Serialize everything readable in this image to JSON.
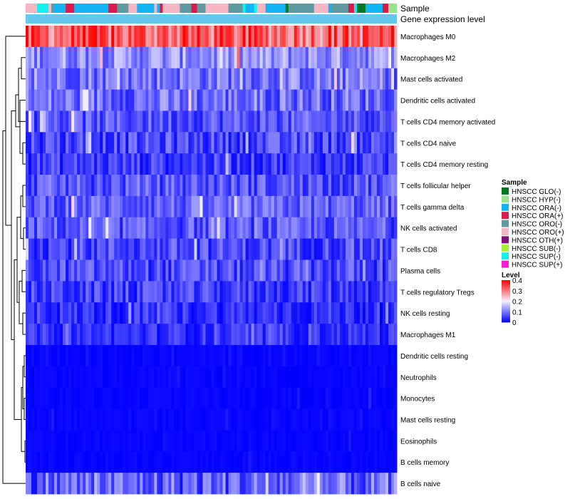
{
  "chart_data": {
    "type": "heatmap",
    "annotation_labels": [
      "Sample",
      "Gene expression level"
    ],
    "rows": [
      "Macrophages M0",
      "Macrophages M2",
      "Mast cells activated",
      "Dendritic cells activated",
      "T cells CD4 memory activated",
      "T cells CD4 naive",
      "T cells CD4 memory resting",
      "T cells follicular helper",
      "T cells gamma delta",
      "NK cells activated",
      "T cells CD8",
      "Plasma cells",
      "T cells regulatory  Tregs",
      "NK cells resting",
      "Macrophages M1",
      "Dendritic cells resting",
      "Neutrophils",
      "Monocytes",
      "Mast cells resting",
      "Eosinophils",
      "B cells memory",
      "B cells naive"
    ],
    "row_mean_level": [
      0.32,
      0.12,
      0.1,
      0.09,
      0.07,
      0.06,
      0.05,
      0.07,
      0.08,
      0.07,
      0.06,
      0.06,
      0.05,
      0.04,
      0.04,
      0.01,
      0.01,
      0.01,
      0.01,
      0.005,
      0.005,
      0.08
    ],
    "row_spread": [
      0.08,
      0.06,
      0.06,
      0.06,
      0.05,
      0.05,
      0.045,
      0.05,
      0.05,
      0.05,
      0.05,
      0.05,
      0.045,
      0.04,
      0.035,
      0.01,
      0.015,
      0.012,
      0.015,
      0.01,
      0.01,
      0.07
    ],
    "n_samples": 130,
    "sample_groups": [
      {
        "name": "HNSCC GLO(-)",
        "color": "#00781e"
      },
      {
        "name": "HNSCC HYP(-)",
        "color": "#98e38b"
      },
      {
        "name": "HNSCC ORA(-)",
        "color": "#13b4f5"
      },
      {
        "name": "HNSCC ORA(+)",
        "color": "#db1a4a"
      },
      {
        "name": "HNSCC ORO(-)",
        "color": "#5e9aa0"
      },
      {
        "name": "HNSCC ORO(+)",
        "color": "#f7b6c3"
      },
      {
        "name": "HNSCC OTH(+)",
        "color": "#800f80"
      },
      {
        "name": "HNSCC SUB(-)",
        "color": "#a6f030"
      },
      {
        "name": "HNSCC SUP(-)",
        "color": "#14f0f0"
      },
      {
        "name": "HNSCC SUP(+)",
        "color": "#ff1cd6"
      }
    ],
    "gene_expression_bar_color": "#64c8ec",
    "color_scale": {
      "stops": [
        {
          "value": 0,
          "color": "#0000ff"
        },
        {
          "value": 0.2,
          "color": "#f5f0ff"
        },
        {
          "value": 0.4,
          "color": "#ff0000"
        }
      ],
      "range": [
        0,
        0.4
      ]
    },
    "dendrogram": "rows clustered"
  },
  "legend": {
    "sample_title": "Sample",
    "level_title": "Level",
    "level_ticks": [
      "0.4",
      "0.3",
      "0.2",
      "0.1",
      "0"
    ]
  }
}
